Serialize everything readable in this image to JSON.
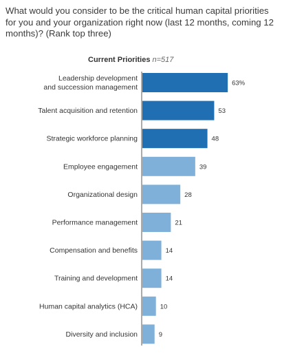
{
  "question": "What would you consider to be the critical human capital priorities for you and your organization right now (last 12 months, coming 12 months)? (Rank top three)",
  "chart_data": {
    "type": "bar",
    "orientation": "horizontal",
    "title": "Current Priorities",
    "subtitle": "n=517",
    "categories": [
      [
        "Leadership development",
        "and succession management"
      ],
      [
        "Talent acquisition and retention"
      ],
      [
        "Strategic workforce planning"
      ],
      [
        "Employee engagement"
      ],
      [
        "Organizational design"
      ],
      [
        "Performance management"
      ],
      [
        "Compensation and benefits"
      ],
      [
        "Training and development"
      ],
      [
        "Human capital analytics (HCA)"
      ],
      [
        "Diversity and inclusion"
      ]
    ],
    "values": [
      63,
      53,
      48,
      39,
      28,
      21,
      14,
      14,
      10,
      9
    ],
    "value_labels": [
      "63%",
      "53",
      "48",
      "39",
      "28",
      "21",
      "14",
      "14",
      "10",
      "9"
    ],
    "highlighted_count": 3,
    "colors": {
      "top": "#1f6fb2",
      "rest": "#7fb0d9",
      "axis": "#555555"
    }
  }
}
